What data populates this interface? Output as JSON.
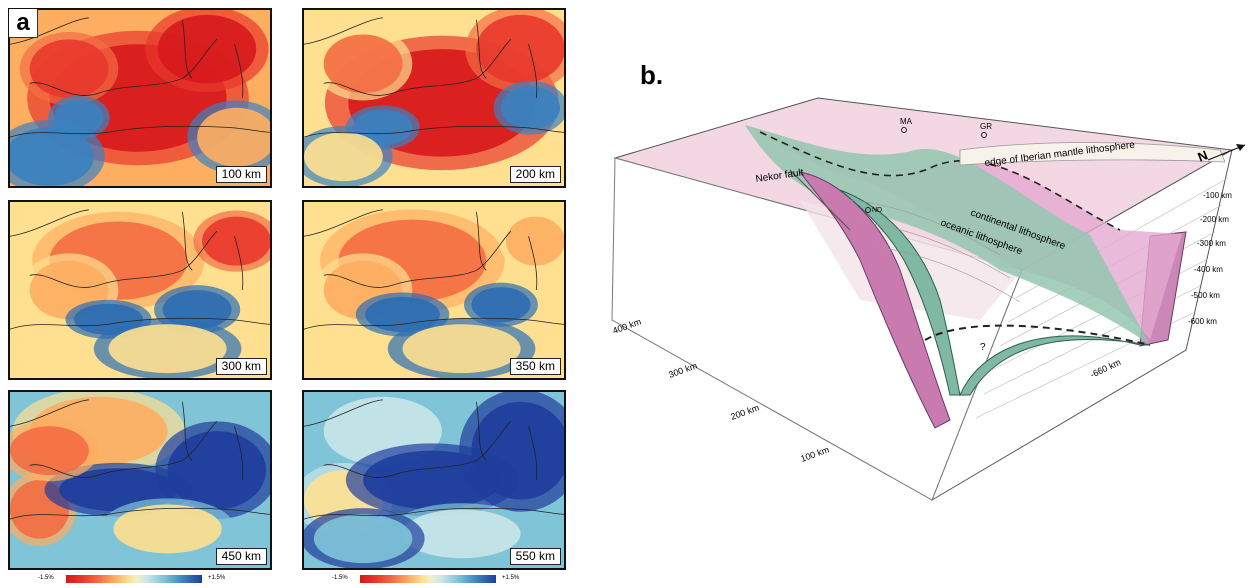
{
  "panel_a": {
    "letter": "a",
    "maps": [
      {
        "depth": "100 km"
      },
      {
        "depth": "200 km"
      },
      {
        "depth": "300 km"
      },
      {
        "depth": "350 km"
      },
      {
        "depth": "450 km"
      },
      {
        "depth": "550 km"
      }
    ],
    "colorbar": {
      "min": "-1.5%",
      "max": "+1.5%"
    }
  },
  "panel_b": {
    "letter": "b.",
    "labels": {
      "ma": "MA",
      "gr": "GR",
      "nd": "ND",
      "nekor": "Nekor fault",
      "iberian_edge": "edge of Iberian mantle lithosphere",
      "continental": "continental lithosphere",
      "oceanic": "oceanic lithosphere",
      "question": "?",
      "north": "N"
    },
    "depth_ticks": [
      "-100 km",
      "-200 km",
      "-300 km",
      "-400 km",
      "-500 km",
      "-600 km"
    ],
    "bottom_depth": "-660 km",
    "distance_ticks": [
      "400 km",
      "300 km",
      "200 km",
      "100 km"
    ]
  }
}
